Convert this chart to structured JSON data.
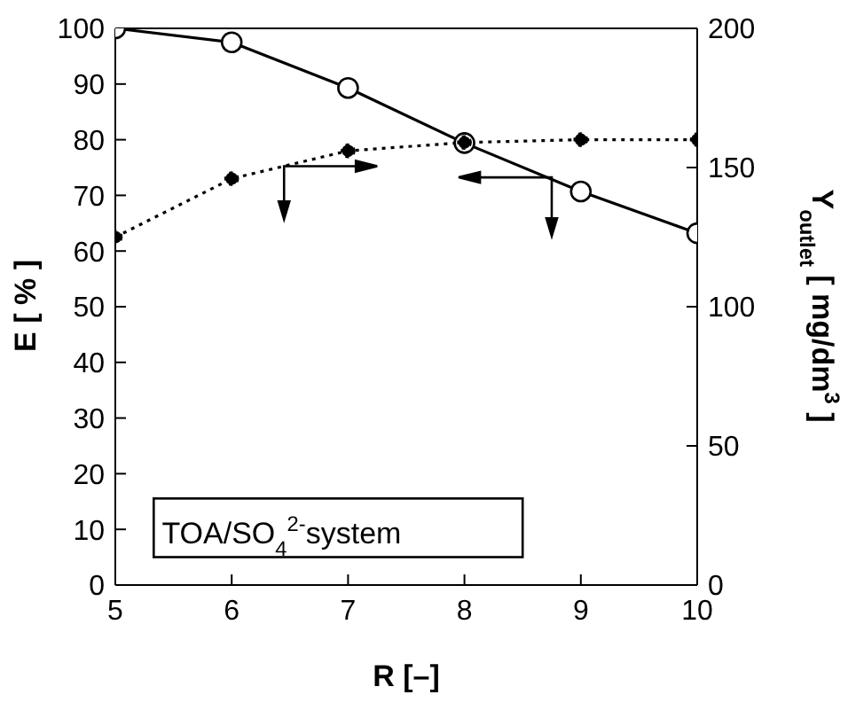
{
  "chart_data": {
    "type": "line",
    "xlabel": "R [–]",
    "ylabel": "E [ % ]",
    "y2label": "Y$_{outlet}$ [ mg/dm$^{3}$ ]",
    "x": [
      5,
      6,
      7,
      8,
      9,
      10
    ],
    "series": [
      {
        "color": "#000000",
        "values": [
          100,
          97.5,
          89.3,
          79.4,
          70.7,
          63.2
        ],
        "line_style": "solid"
      },
      {
        "color": "#000000",
        "values": [
          125,
          146,
          156,
          159,
          160,
          160
        ],
        "axis": "y2",
        "line_style": "dotted"
      }
    ],
    "xlim": [
      5,
      10
    ],
    "xticks": [
      5,
      6,
      7,
      8,
      9,
      10
    ],
    "ylim": [
      0,
      100
    ],
    "yticks": [
      0,
      10,
      20,
      30,
      40,
      50,
      60,
      70,
      80,
      90,
      100
    ],
    "y2lim": [
      0,
      200
    ],
    "y2ticks": [
      0,
      50,
      100,
      150,
      200
    ],
    "marker": "circle",
    "grid": false,
    "legend": false,
    "annotations": [
      "TOA/SO$_{4}$$^{2-}$system"
    ]
  }
}
